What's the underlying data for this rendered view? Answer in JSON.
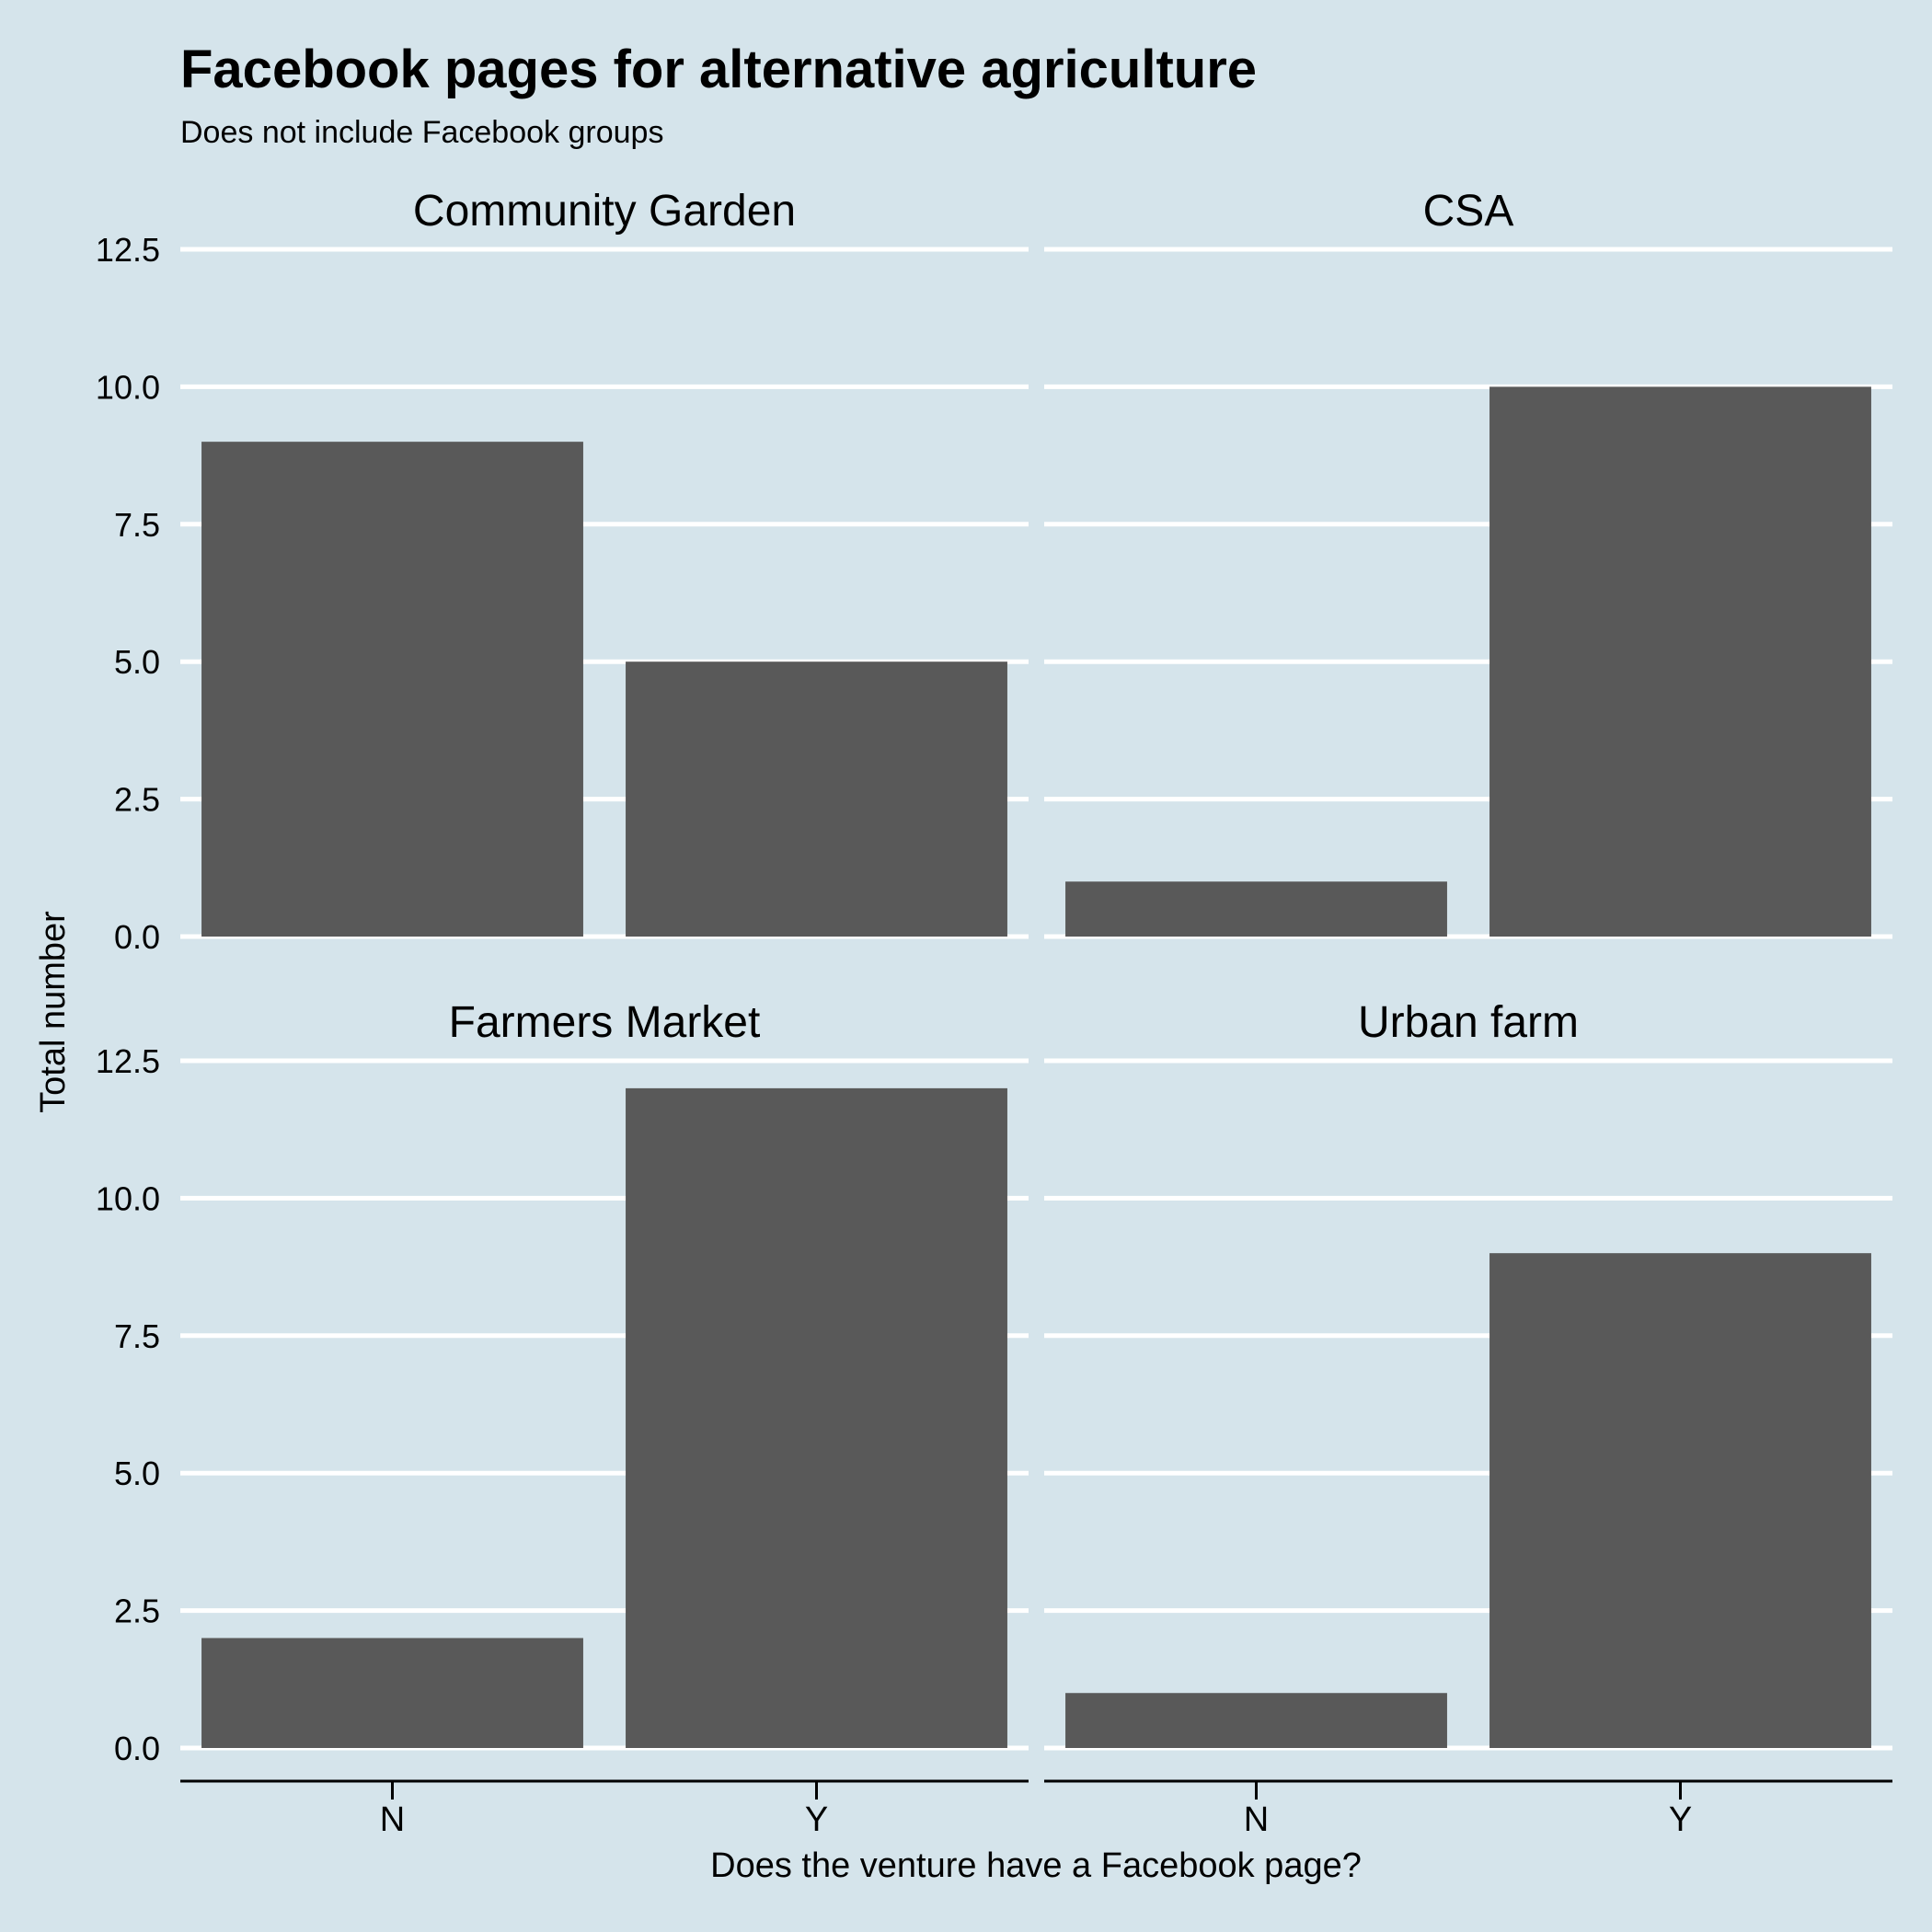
{
  "chart_data": {
    "type": "bar",
    "title": "Facebook pages for alternative agriculture",
    "subtitle": "Does not include Facebook groups",
    "xlabel": "Does the venture have a Facebook page?",
    "ylabel": "Total number",
    "categories": [
      "N",
      "Y"
    ],
    "ylim": [
      0,
      12.5
    ],
    "yticks": [
      "0.0",
      "2.5",
      "5.0",
      "7.5",
      "10.0",
      "12.5"
    ],
    "ytick_values": [
      0,
      2.5,
      5,
      7.5,
      10,
      12.5
    ],
    "grid": "horizontal major",
    "background_color": "#d5e4eb",
    "bar_color": "#595959",
    "facets": [
      {
        "name": "Community Garden",
        "values": [
          9,
          5
        ]
      },
      {
        "name": "CSA",
        "values": [
          1,
          10
        ]
      },
      {
        "name": "Farmers Market",
        "values": [
          2,
          12
        ]
      },
      {
        "name": "Urban farm",
        "values": [
          1,
          9
        ]
      }
    ]
  }
}
